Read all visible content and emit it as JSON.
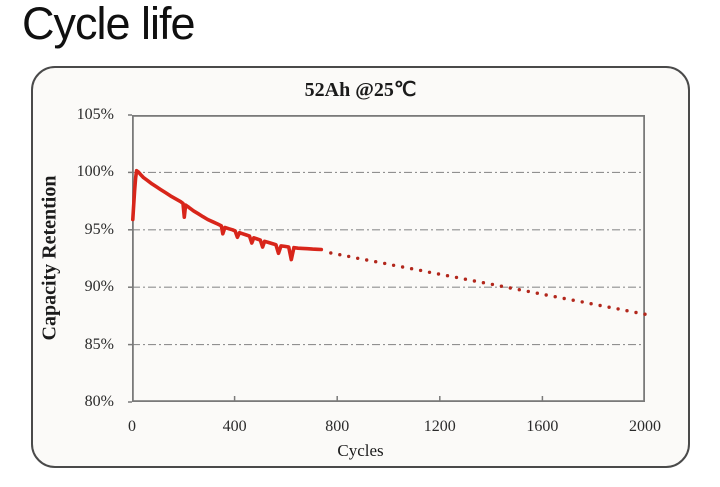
{
  "page_title": "Cycle life",
  "chart": {
    "title": "52Ah @25℃",
    "xlabel": "Cycles",
    "ylabel": "Capacity Retention"
  },
  "colors": {
    "box_border": "#4a4a4a",
    "box_background": "#fbfaf8",
    "plot_frame": "#7a7a7a",
    "gridline": "#909090",
    "measured_line": "#d8251a",
    "projected_dots": "#b2271c",
    "text": "#2b2b2b"
  },
  "chart_data": {
    "type": "line",
    "title": "52Ah @25℃",
    "xlabel": "Cycles",
    "ylabel": "Capacity Retention",
    "xlim": [
      0,
      2000
    ],
    "ylim": [
      80,
      105
    ],
    "x_ticks": [
      0,
      400,
      800,
      1200,
      1600,
      2000
    ],
    "y_ticks": [
      {
        "label": "105%",
        "value": 105
      },
      {
        "label": "100%",
        "value": 100
      },
      {
        "label": "95%",
        "value": 95
      },
      {
        "label": "90%",
        "value": 90
      },
      {
        "label": "85%",
        "value": 85
      },
      {
        "label": "80%",
        "value": 80
      }
    ],
    "grid_values": [
      100,
      95,
      90,
      85
    ],
    "grid_style": "dash-dot",
    "legend": "none",
    "series": [
      {
        "name": "measured capacity retention",
        "style": "solid",
        "color": "#d8251a",
        "points": [
          [
            3,
            95.9
          ],
          [
            6,
            96.9
          ],
          [
            10,
            98.4
          ],
          [
            14,
            99.5
          ],
          [
            18,
            100.15
          ],
          [
            24,
            100.05
          ],
          [
            32,
            99.85
          ],
          [
            45,
            99.55
          ],
          [
            60,
            99.3
          ],
          [
            78,
            99.0
          ],
          [
            95,
            98.75
          ],
          [
            112,
            98.5
          ],
          [
            130,
            98.25
          ],
          [
            150,
            97.95
          ],
          [
            170,
            97.7
          ],
          [
            190,
            97.45
          ],
          [
            199,
            97.3
          ],
          [
            204,
            96.1
          ],
          [
            209,
            97.15
          ],
          [
            222,
            96.95
          ],
          [
            240,
            96.65
          ],
          [
            258,
            96.4
          ],
          [
            276,
            96.15
          ],
          [
            295,
            95.9
          ],
          [
            315,
            95.7
          ],
          [
            335,
            95.5
          ],
          [
            348,
            95.35
          ],
          [
            354,
            94.65
          ],
          [
            362,
            95.2
          ],
          [
            377,
            95.1
          ],
          [
            392,
            95.0
          ],
          [
            402,
            94.9
          ],
          [
            411,
            94.35
          ],
          [
            419,
            94.75
          ],
          [
            432,
            94.65
          ],
          [
            446,
            94.55
          ],
          [
            458,
            94.45
          ],
          [
            467,
            93.85
          ],
          [
            475,
            94.3
          ],
          [
            488,
            94.2
          ],
          [
            500,
            94.1
          ],
          [
            509,
            93.5
          ],
          [
            517,
            94.0
          ],
          [
            531,
            93.9
          ],
          [
            547,
            93.8
          ],
          [
            561,
            93.7
          ],
          [
            571,
            92.95
          ],
          [
            581,
            93.6
          ],
          [
            596,
            93.55
          ],
          [
            611,
            93.5
          ],
          [
            621,
            92.4
          ],
          [
            631,
            93.45
          ],
          [
            647,
            93.4
          ],
          [
            664,
            93.38
          ],
          [
            684,
            93.35
          ],
          [
            704,
            93.32
          ],
          [
            722,
            93.3
          ],
          [
            738,
            93.28
          ]
        ]
      },
      {
        "name": "projected capacity retention",
        "style": "dotted",
        "color": "#b2271c",
        "points": [
          [
            775,
            92.98
          ],
          [
            810,
            92.83
          ],
          [
            845,
            92.68
          ],
          [
            880,
            92.52
          ],
          [
            915,
            92.37
          ],
          [
            950,
            92.22
          ],
          [
            985,
            92.07
          ],
          [
            1020,
            91.91
          ],
          [
            1055,
            91.76
          ],
          [
            1090,
            91.61
          ],
          [
            1125,
            91.46
          ],
          [
            1160,
            91.3
          ],
          [
            1195,
            91.15
          ],
          [
            1230,
            91.0
          ],
          [
            1265,
            90.85
          ],
          [
            1300,
            90.7
          ],
          [
            1335,
            90.54
          ],
          [
            1370,
            90.39
          ],
          [
            1405,
            90.24
          ],
          [
            1440,
            90.09
          ],
          [
            1475,
            89.93
          ],
          [
            1510,
            89.78
          ],
          [
            1545,
            89.63
          ],
          [
            1580,
            89.48
          ],
          [
            1615,
            89.32
          ],
          [
            1650,
            89.17
          ],
          [
            1685,
            89.02
          ],
          [
            1720,
            88.87
          ],
          [
            1755,
            88.72
          ],
          [
            1790,
            88.56
          ],
          [
            1825,
            88.41
          ],
          [
            1860,
            88.26
          ],
          [
            1895,
            88.11
          ],
          [
            1930,
            87.95
          ],
          [
            1965,
            87.8
          ],
          [
            2000,
            87.65
          ]
        ]
      }
    ]
  }
}
